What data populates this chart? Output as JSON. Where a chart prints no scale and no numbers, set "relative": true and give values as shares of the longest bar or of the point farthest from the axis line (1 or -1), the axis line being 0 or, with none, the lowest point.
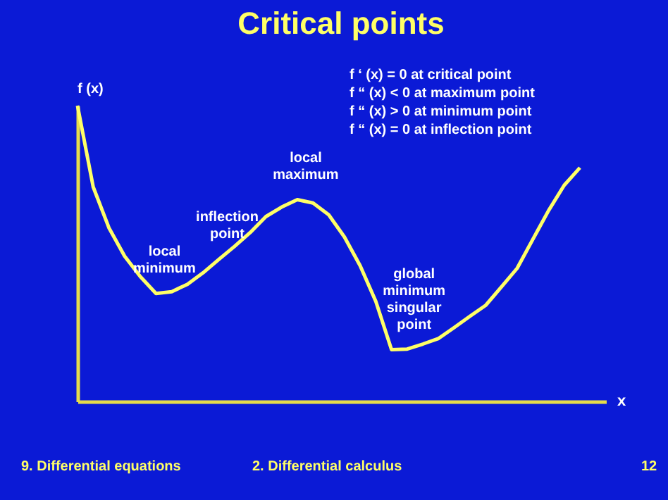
{
  "chart_data": {
    "type": "line",
    "relative": true,
    "title": "Critical points",
    "xlabel": "x",
    "ylabel": "f (x)",
    "categories": [
      null,
      null,
      null,
      null,
      null,
      null,
      null,
      null,
      null,
      null,
      null,
      null,
      null,
      null,
      null,
      null,
      null,
      null,
      null,
      null,
      null,
      null,
      null,
      null,
      null,
      null,
      null,
      null,
      null,
      null,
      null,
      null,
      null
    ],
    "series": [
      {
        "color": "#ffff66",
        "values": [
          1.0,
          0.725,
          0.587,
          0.491,
          0.422,
          0.365,
          0.371,
          0.396,
          0.435,
          0.48,
          0.524,
          0.571,
          0.625,
          0.657,
          0.682,
          0.671,
          0.631,
          0.556,
          0.459,
          0.338,
          0.175,
          0.177,
          0.194,
          0.213,
          0.25,
          0.288,
          0.325,
          0.387,
          0.45,
          0.548,
          0.645,
          0.731,
          0.79
        ]
      }
    ],
    "tick_labels": false,
    "annotations": [
      "f ‘ (x) = 0 at critical point",
      "f “ (x) < 0 at maximum point",
      "f “ (x) > 0 at minimum point",
      "f “ (x) = 0 at inflection point",
      {
        "text": "local minimum",
        "y": 0.365
      },
      {
        "text": "inflection point",
        "y": 0.48
      },
      {
        "text": "local maximum",
        "y": 0.682
      },
      {
        "text": "global minimum singular point",
        "y": 0.175
      },
      "9. Differential equations",
      "2. Differential calculus",
      "12"
    ]
  }
}
